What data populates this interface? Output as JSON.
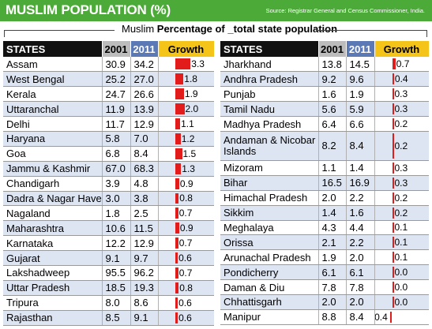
{
  "header": {
    "title": "MUSLIM POPULATION (%)",
    "source": "Source: Registrar General and Census Commissioner, India."
  },
  "subtitle": {
    "prefix": "Muslim ",
    "bold": "Percentage of _total state population"
  },
  "colors": {
    "header_bg": "#4caa38",
    "bar": "#e21b1b",
    "row_alt": "#dde4f2",
    "col_2001": "#bcbcbc",
    "col_2011": "#5b79b5",
    "col_growth": "#f5c419"
  },
  "chart_data": {
    "type": "table",
    "title": "MUSLIM POPULATION (%)",
    "columns": [
      "STATES",
      "2001",
      "2011",
      "Growth"
    ],
    "tables": [
      {
        "rows": [
          {
            "state": "Assam",
            "y2001": "30.9",
            "y2011": "34.2",
            "growth": "3.3"
          },
          {
            "state": "West Bengal",
            "y2001": "25.2",
            "y2011": "27.0",
            "growth": "1.8"
          },
          {
            "state": "Kerala",
            "y2001": "24.7",
            "y2011": "26.6",
            "growth": "1.9"
          },
          {
            "state": "Uttaranchal",
            "y2001": "11.9",
            "y2011": "13.9",
            "growth": "2.0"
          },
          {
            "state": "Delhi",
            "y2001": "11.7",
            "y2011": "12.9",
            "growth": "1.1"
          },
          {
            "state": "Haryana",
            "y2001": "5.8",
            "y2011": "7.0",
            "growth": "1.2"
          },
          {
            "state": "Goa",
            "y2001": "6.8",
            "y2011": "8.4",
            "growth": "1.5"
          },
          {
            "state": "Jammu & Kashmir",
            "y2001": "67.0",
            "y2011": "68.3",
            "growth": "1.3"
          },
          {
            "state": "Chandigarh",
            "y2001": "3.9",
            "y2011": "4.8",
            "growth": "0.9"
          },
          {
            "state": "Dadra & Nagar Haveli",
            "y2001": "3.0",
            "y2011": "3.8",
            "growth": "0.8"
          },
          {
            "state": "Nagaland",
            "y2001": "1.8",
            "y2011": "2.5",
            "growth": "0.7"
          },
          {
            "state": "Maharashtra",
            "y2001": "10.6",
            "y2011": "11.5",
            "growth": "0.9"
          },
          {
            "state": "Karnataka",
            "y2001": "12.2",
            "y2011": "12.9",
            "growth": "0.7"
          },
          {
            "state": "Gujarat",
            "y2001": "9.1",
            "y2011": "9.7",
            "growth": "0.6"
          },
          {
            "state": "Lakshadweep",
            "y2001": "95.5",
            "y2011": "96.2",
            "growth": "0.7"
          },
          {
            "state": "Uttar Pradesh",
            "y2001": "18.5",
            "y2011": "19.3",
            "growth": "0.8"
          },
          {
            "state": "Tripura",
            "y2001": "8.0",
            "y2011": "8.6",
            "growth": "0.6"
          },
          {
            "state": "Rajasthan",
            "y2001": "8.5",
            "y2011": "9.1",
            "growth": "0.6"
          }
        ]
      },
      {
        "rows": [
          {
            "state": "Jharkhand",
            "y2001": "13.8",
            "y2011": "14.5",
            "growth": "0.7"
          },
          {
            "state": "Andhra Pradesh",
            "y2001": "9.2",
            "y2011": "9.6",
            "growth": "0.4"
          },
          {
            "state": "Punjab",
            "y2001": "1.6",
            "y2011": "1.9",
            "growth": "0.3"
          },
          {
            "state": "Tamil Nadu",
            "y2001": "5.6",
            "y2011": "5.9",
            "growth": "0.3"
          },
          {
            "state": "Madhya Pradesh",
            "y2001": "6.4",
            "y2011": "6.6",
            "growth": "0.2"
          },
          {
            "state": "Andaman & Nicobar Islands",
            "y2001": "8.2",
            "y2011": "8.4",
            "growth": "0.2"
          },
          {
            "state": "Mizoram",
            "y2001": "1.1",
            "y2011": "1.4",
            "growth": "0.3"
          },
          {
            "state": "Bihar",
            "y2001": "16.5",
            "y2011": "16.9",
            "growth": "0.3"
          },
          {
            "state": "Himachal Pradesh",
            "y2001": "2.0",
            "y2011": "2.2",
            "growth": "0.2"
          },
          {
            "state": "Sikkim",
            "y2001": "1.4",
            "y2011": "1.6",
            "growth": "0.2"
          },
          {
            "state": "Meghalaya",
            "y2001": "4.3",
            "y2011": "4.4",
            "growth": "0.1"
          },
          {
            "state": "Orissa",
            "y2001": "2.1",
            "y2011": "2.2",
            "growth": "0.1"
          },
          {
            "state": "Arunachal Pradesh",
            "y2001": "1.9",
            "y2011": "2.0",
            "growth": "0.1"
          },
          {
            "state": "Pondicherry",
            "y2001": "6.1",
            "y2011": "6.1",
            "growth": "0.0"
          },
          {
            "state": "Daman & Diu",
            "y2001": "7.8",
            "y2011": "7.8",
            "growth": "0.0"
          },
          {
            "state": "Chhattisgarh",
            "y2001": "2.0",
            "y2011": "2.0",
            "growth": "0.0"
          },
          {
            "state": "Manipur",
            "y2001": "8.8",
            "y2011": "8.4",
            "growth": "-0.4"
          }
        ]
      }
    ]
  }
}
